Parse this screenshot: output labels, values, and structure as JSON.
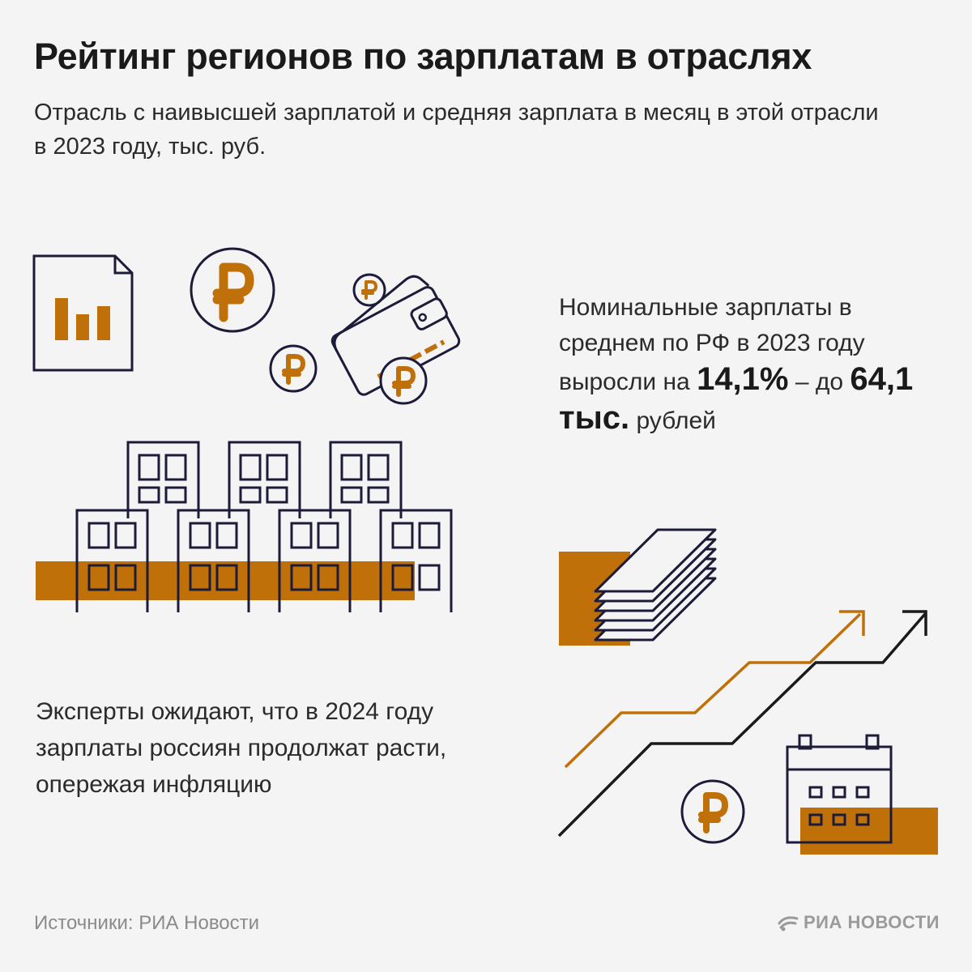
{
  "title": "Рейтинг регионов по зарплатам в отраслях",
  "subtitle": "Отрасль с наивысшей зарплатой и средняя зарплата в месяц в этой отрасли в 2023 году, тыс. руб.",
  "stat": {
    "text_1": "Номинальные зарплаты в среднем по РФ в 2023 году выросли на ",
    "growth": "14,1%",
    "text_2": " – до ",
    "amount": "64,1 тыс.",
    "text_3": " рублей"
  },
  "forecast": "Эксперты ожидают, что в 2024 году зарплаты россиян продолжат расти, опережая инфляцию",
  "source": "Источники: РИА Новости",
  "logo": "РИА НОВОСТИ",
  "colors": {
    "accent": "#c07008",
    "ink": "#1c1c3a",
    "background": "#f4f4f4"
  },
  "icons": [
    "chart-document-icon",
    "ruble-coin-icon",
    "wallet-icon",
    "buildings-icon",
    "banknotes-icon",
    "growth-arrows-icon",
    "calendar-icon"
  ]
}
